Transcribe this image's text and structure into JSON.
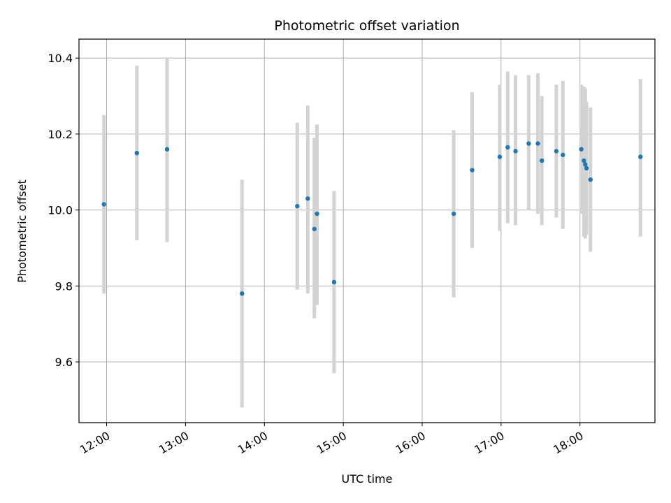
{
  "chart_data": {
    "type": "scatter",
    "title": "Photometric offset variation",
    "xlabel": "UTC time",
    "ylabel": "Photometric offset",
    "x_ticks": [
      "12:00",
      "13:00",
      "14:00",
      "15:00",
      "16:00",
      "17:00",
      "18:00"
    ],
    "y_ticks": [
      "9.6",
      "9.8",
      "10.0",
      "10.2",
      "10.4"
    ],
    "xlim": [
      "11:39",
      "18:57"
    ],
    "ylim": [
      9.44,
      10.45
    ],
    "grid": true,
    "marker_color": "#1f77b4",
    "errorbar_color": "#d3d3d3",
    "points": [
      {
        "time": "11:58",
        "y": 10.015,
        "low": 9.78,
        "high": 10.25
      },
      {
        "time": "12:23",
        "y": 10.15,
        "low": 9.92,
        "high": 10.38
      },
      {
        "time": "12:46",
        "y": 10.16,
        "low": 9.915,
        "high": 10.4
      },
      {
        "time": "13:43",
        "y": 9.78,
        "low": 9.48,
        "high": 10.08
      },
      {
        "time": "14:25",
        "y": 10.01,
        "low": 9.79,
        "high": 10.23
      },
      {
        "time": "14:33",
        "y": 10.03,
        "low": 9.78,
        "high": 10.275
      },
      {
        "time": "14:38",
        "y": 9.95,
        "low": 9.715,
        "high": 10.19
      },
      {
        "time": "14:40",
        "y": 9.99,
        "low": 9.75,
        "high": 10.225
      },
      {
        "time": "14:53",
        "y": 9.81,
        "low": 9.57,
        "high": 10.05
      },
      {
        "time": "16:24",
        "y": 9.99,
        "low": 9.77,
        "high": 10.21
      },
      {
        "time": "16:38",
        "y": 10.105,
        "low": 9.9,
        "high": 10.31
      },
      {
        "time": "16:59",
        "y": 10.14,
        "low": 9.945,
        "high": 10.33
      },
      {
        "time": "17:05",
        "y": 10.165,
        "low": 9.965,
        "high": 10.365
      },
      {
        "time": "17:11",
        "y": 10.155,
        "low": 9.96,
        "high": 10.355
      },
      {
        "time": "17:21",
        "y": 10.175,
        "low": 10.0,
        "high": 10.355
      },
      {
        "time": "17:28",
        "y": 10.175,
        "low": 9.99,
        "high": 10.36
      },
      {
        "time": "17:31",
        "y": 10.13,
        "low": 9.96,
        "high": 10.3
      },
      {
        "time": "17:42",
        "y": 10.155,
        "low": 9.98,
        "high": 10.33
      },
      {
        "time": "17:47",
        "y": 10.145,
        "low": 9.95,
        "high": 10.34
      },
      {
        "time": "18:01",
        "y": 10.16,
        "low": 9.99,
        "high": 10.33
      },
      {
        "time": "18:03",
        "y": 10.13,
        "low": 9.93,
        "high": 10.325
      },
      {
        "time": "18:04",
        "y": 10.12,
        "low": 9.925,
        "high": 10.32
      },
      {
        "time": "18:05",
        "y": 10.11,
        "low": 9.935,
        "high": 10.285
      },
      {
        "time": "18:08",
        "y": 10.08,
        "low": 9.89,
        "high": 10.27
      },
      {
        "time": "18:46",
        "y": 10.14,
        "low": 9.93,
        "high": 10.345
      }
    ]
  }
}
